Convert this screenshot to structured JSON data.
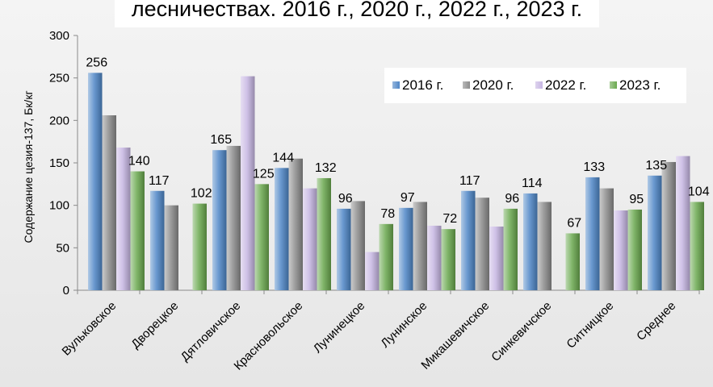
{
  "chart_data": {
    "type": "bar",
    "title": "лесничествах. 2016 г., 2020 г., 2022 г., 2023 г.",
    "ylabel": "Содержание цезия-137, Бк/кг",
    "xlabel": "",
    "ylim": [
      0,
      300
    ],
    "yticks": [
      "0",
      "50",
      "100",
      "150",
      "200",
      "250",
      "300"
    ],
    "legend_position": "top-right",
    "categories": [
      "Вульковское",
      "Дворецкое",
      "Дятловичское",
      "Красновольское",
      "Лунинецкое",
      "Лунинское",
      "Микашевичское",
      "Синкевичское",
      "Ситницкое",
      "Среднее"
    ],
    "series": [
      {
        "name": "2016 г.",
        "color": "#4f86c6",
        "values": [
          256,
          117,
          165,
          144,
          96,
          97,
          117,
          114,
          133,
          135
        ],
        "labels": [
          "256",
          "117",
          "165",
          "144",
          "96",
          "97",
          "117",
          "114",
          "133",
          "135"
        ]
      },
      {
        "name": "2020 г.",
        "color": "#8c8c8c",
        "values": [
          206,
          100,
          170,
          155,
          105,
          104,
          109,
          104,
          120,
          151
        ],
        "labels": [
          "",
          "",
          "",
          "",
          "",
          "",
          "",
          "",
          "",
          ""
        ]
      },
      {
        "name": "2022 г.",
        "color": "#c7b6e3",
        "values": [
          168,
          0,
          252,
          120,
          45,
          76,
          75,
          0,
          94,
          158
        ],
        "labels": [
          "",
          "",
          "",
          "",
          "",
          "",
          "",
          "",
          "",
          ""
        ]
      },
      {
        "name": "2023 г.",
        "color": "#6aa84f",
        "values": [
          140,
          102,
          125,
          132,
          78,
          72,
          96,
          67,
          95,
          104
        ],
        "labels": [
          "140",
          "102",
          "125",
          "132",
          "78",
          "72",
          "96",
          "67",
          "95",
          "104"
        ]
      }
    ]
  }
}
